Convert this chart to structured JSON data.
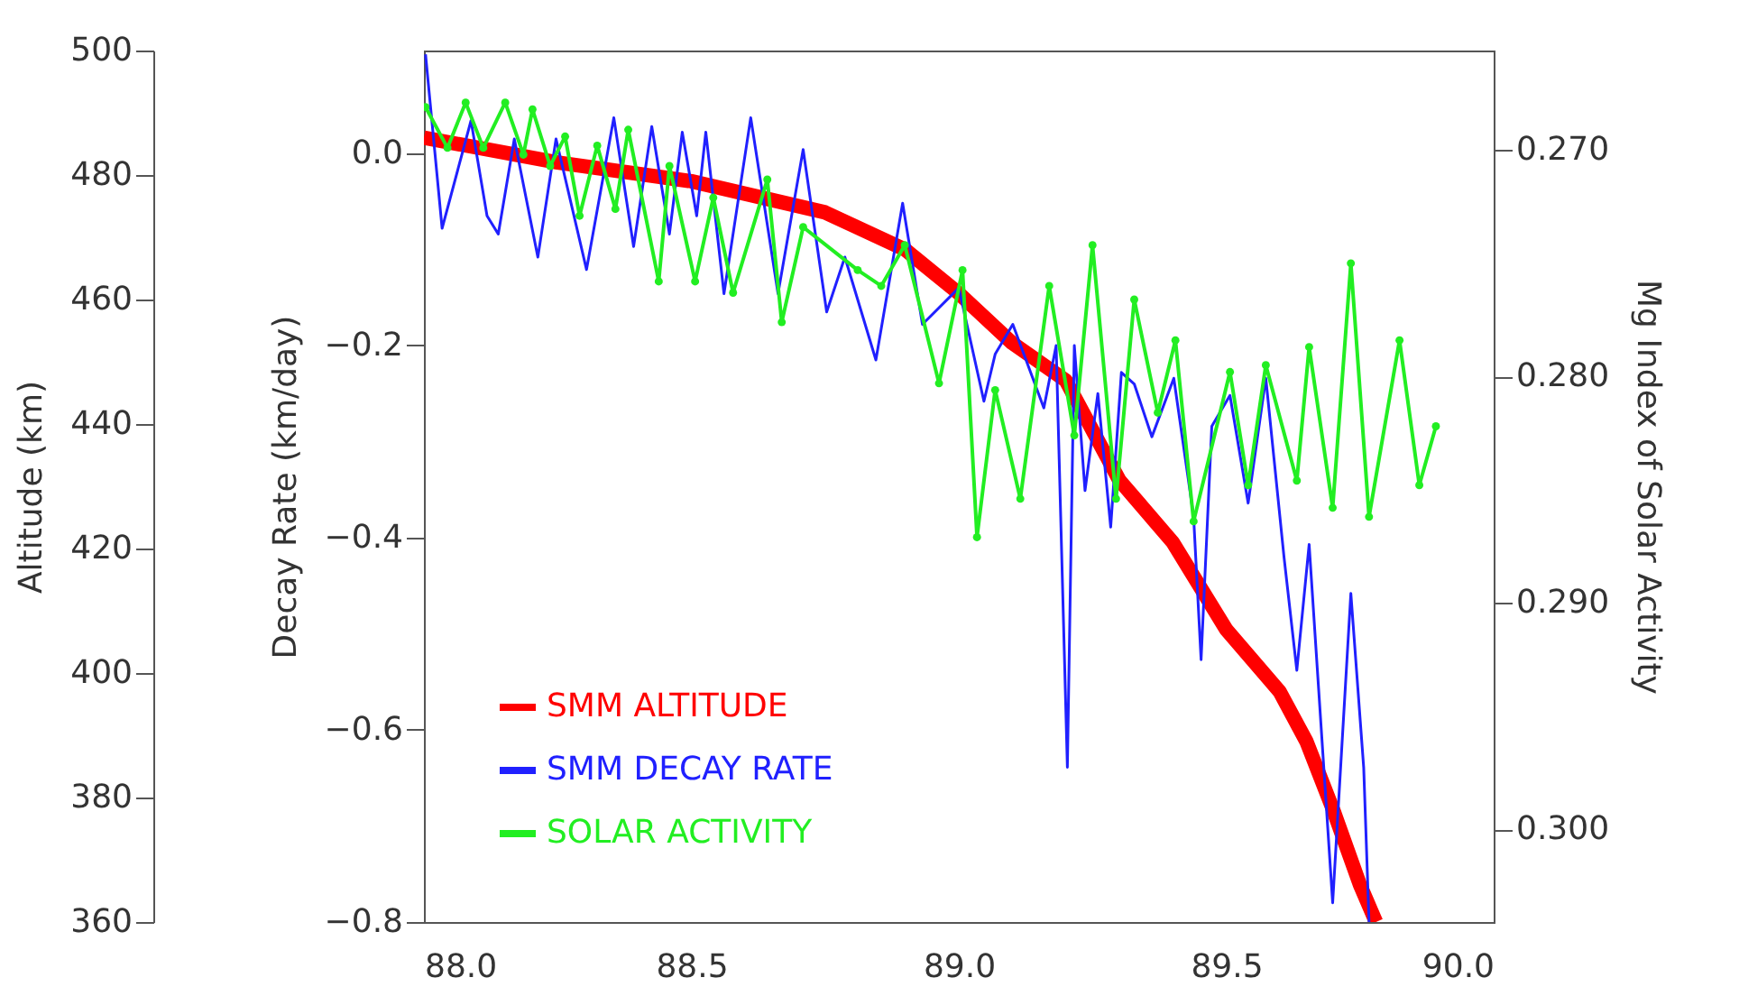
{
  "chart_data": {
    "type": "line",
    "xlim": [
      88,
      90
    ],
    "xticks": [
      {
        "value": 88,
        "label": "88.0"
      },
      {
        "value": 88.5,
        "label": "88.5"
      },
      {
        "value": 89,
        "label": "89.0"
      },
      {
        "value": 89.5,
        "label": "89.5"
      },
      {
        "value": 90,
        "label": "90.0"
      }
    ],
    "ylabel": "Decay Rate (km/day)",
    "ylim": [
      -0.8,
      0.107
    ],
    "yticks": [
      {
        "value": 0,
        "label": "0.0"
      },
      {
        "value": -0.2,
        "label": "−0.2"
      },
      {
        "value": -0.4,
        "label": "−0.4"
      },
      {
        "value": -0.6,
        "label": "−0.6"
      },
      {
        "value": -0.8,
        "label": "−0.8"
      }
    ],
    "y2label": "Mg Index of Solar Activity",
    "y2lim": [
      0.3041,
      0.2656
    ],
    "y2ticks": [
      {
        "value": 0.27,
        "label": "0.270"
      },
      {
        "value": 0.28,
        "label": "0.280"
      },
      {
        "value": 0.29,
        "label": "0.290"
      },
      {
        "value": 0.3,
        "label": "0.300"
      }
    ],
    "y3label": "Altitude (km)",
    "y3lim": [
      360,
      500
    ],
    "y3ticks": [
      360,
      380,
      400,
      420,
      440,
      460,
      480,
      500
    ],
    "legend": "bottom left",
    "grid": false,
    "series": [
      {
        "name": "SMM ALTITUDE",
        "color": "#ff0000",
        "axis": "y3",
        "x": [
          88.0,
          88.25,
          88.5,
          88.75,
          88.9,
          89.0,
          89.1,
          89.2,
          89.3,
          89.4,
          89.5,
          89.6,
          89.65,
          89.7,
          89.75,
          89.78
        ],
        "values": [
          486,
          482,
          479,
          474,
          468,
          461,
          453,
          447,
          431,
          421,
          407,
          397,
          389,
          378,
          366,
          360
        ]
      },
      {
        "name": "SMM DECAY RATE",
        "color": "#2020ff",
        "axis": "y",
        "x": [
          88.003,
          88.034,
          88.088,
          88.118,
          88.139,
          88.169,
          88.213,
          88.247,
          88.304,
          88.355,
          88.392,
          88.426,
          88.459,
          88.483,
          88.51,
          88.527,
          88.561,
          88.611,
          88.662,
          88.709,
          88.753,
          88.787,
          88.845,
          88.895,
          88.932,
          89.0,
          89.047,
          89.068,
          89.101,
          89.159,
          89.182,
          89.203,
          89.216,
          89.236,
          89.26,
          89.284,
          89.304,
          89.328,
          89.361,
          89.402,
          89.439,
          89.453,
          89.473,
          89.507,
          89.541,
          89.574,
          89.608,
          89.632,
          89.655,
          89.699,
          89.733,
          89.757,
          89.767
        ],
        "values": [
          0.103,
          -0.078,
          0.034,
          -0.065,
          -0.084,
          0.015,
          -0.108,
          0.015,
          -0.121,
          0.037,
          -0.097,
          0.028,
          -0.084,
          0.022,
          -0.065,
          0.022,
          -0.146,
          0.037,
          -0.146,
          0.004,
          -0.165,
          -0.108,
          -0.215,
          -0.052,
          -0.178,
          -0.14,
          -0.258,
          -0.209,
          -0.178,
          -0.265,
          -0.2,
          -0.639,
          -0.2,
          -0.351,
          -0.25,
          -0.389,
          -0.228,
          -0.24,
          -0.295,
          -0.234,
          -0.378,
          -0.527,
          -0.284,
          -0.252,
          -0.364,
          -0.234,
          -0.42,
          -0.538,
          -0.407,
          -0.78,
          -0.458,
          -0.639,
          -0.8
        ]
      },
      {
        "name": "SOLAR ACTIVITY",
        "color": "#22ee22",
        "axis": "y2",
        "marker": "circle",
        "x": [
          88.003,
          88.044,
          88.078,
          88.111,
          88.152,
          88.186,
          88.203,
          88.236,
          88.264,
          88.291,
          88.324,
          88.358,
          88.382,
          88.439,
          88.459,
          88.507,
          88.541,
          88.578,
          88.642,
          88.669,
          88.709,
          88.811,
          88.855,
          88.899,
          88.963,
          89.007,
          89.034,
          89.068,
          89.115,
          89.169,
          89.216,
          89.25,
          89.294,
          89.328,
          89.372,
          89.405,
          89.439,
          89.507,
          89.541,
          89.574,
          89.632,
          89.655,
          89.699,
          89.733,
          89.767,
          89.824,
          89.861,
          89.892
        ],
        "values": [
          0.2681,
          0.2699,
          0.2679,
          0.2699,
          0.2679,
          0.2702,
          0.2682,
          0.2707,
          0.2694,
          0.2729,
          0.2698,
          0.2726,
          0.2691,
          0.2758,
          0.2707,
          0.2758,
          0.2721,
          0.2763,
          0.2713,
          0.2776,
          0.2734,
          0.2753,
          0.276,
          0.2742,
          0.2803,
          0.2753,
          0.2871,
          0.2806,
          0.2854,
          0.276,
          0.2826,
          0.2742,
          0.2854,
          0.2766,
          0.2816,
          0.2784,
          0.2864,
          0.2798,
          0.2848,
          0.2795,
          0.2846,
          0.2787,
          0.2858,
          0.275,
          0.2862,
          0.2784,
          0.2848,
          0.2822
        ]
      }
    ]
  }
}
